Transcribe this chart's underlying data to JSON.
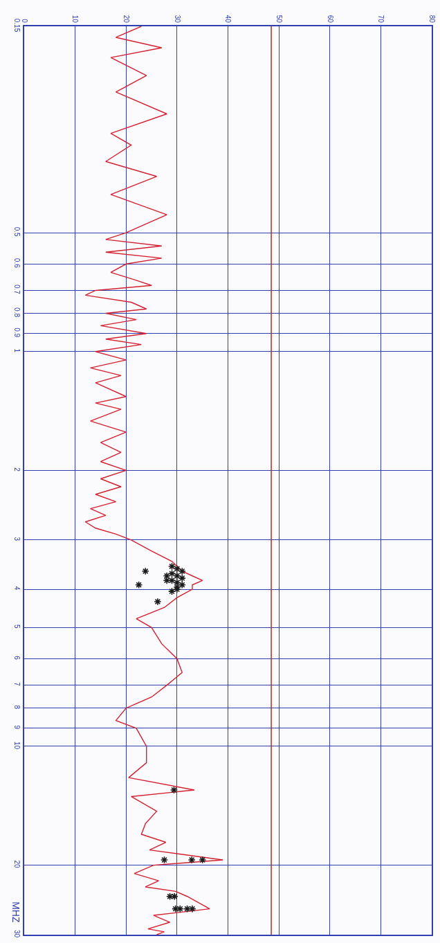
{
  "chart_data": {
    "type": "line",
    "orientation": "horizontal",
    "ylabel": "MHZ",
    "log": "y",
    "grid": true,
    "xlim": [
      0,
      80
    ],
    "xticks": [
      0,
      10,
      20,
      30,
      40,
      50,
      60,
      70,
      80
    ],
    "ylim": [
      30,
      0.15
    ],
    "yticks": [
      0.15,
      0.5,
      0.6,
      0.7,
      0.8,
      0.9,
      1,
      2,
      3,
      4,
      5,
      6,
      7,
      8,
      9,
      10,
      20,
      30
    ],
    "ref_lines": [
      {
        "axis": "x",
        "value": 48.5,
        "color": "#b03020"
      }
    ],
    "series": [
      {
        "color": "#d42030",
        "marker": "none",
        "x": [
          0.15,
          0.16,
          0.17,
          0.18,
          0.2,
          0.22,
          0.25,
          0.28,
          0.3,
          0.33,
          0.36,
          0.4,
          0.45,
          0.5,
          0.52,
          0.54,
          0.56,
          0.58,
          0.6,
          0.63,
          0.66,
          0.68,
          0.7,
          0.72,
          0.75,
          0.78,
          0.8,
          0.83,
          0.86,
          0.9,
          0.93,
          0.96,
          1.0,
          1.05,
          1.1,
          1.15,
          1.2,
          1.3,
          1.35,
          1.4,
          1.5,
          1.6,
          1.7,
          1.8,
          1.9,
          2.0,
          2.1,
          2.2,
          2.3,
          2.4,
          2.5,
          2.6,
          2.7,
          2.8,
          2.9,
          3.0,
          3.2,
          3.4,
          3.6,
          3.7,
          3.8,
          3.9,
          4.0,
          4.2,
          4.45,
          4.75,
          5.0,
          5.5,
          6.0,
          6.5,
          7.0,
          7.5,
          8.0,
          8.6,
          9.0,
          10.0,
          11.0,
          12.0,
          12.9,
          13.4,
          14.6,
          15.7,
          16.7,
          17.5,
          18.3,
          19.4,
          20.0,
          21.0,
          21.9,
          22.7,
          23.3,
          24.0,
          25.8,
          26.8,
          27.9,
          29.0,
          29.5,
          30.0
        ],
        "values": [
          23,
          18,
          27,
          17,
          24,
          18,
          28,
          17,
          21,
          16,
          26,
          17,
          28,
          20,
          16,
          27,
          16,
          27,
          20,
          17,
          22,
          25,
          14,
          12,
          21,
          24,
          16,
          22,
          15,
          24,
          16,
          23,
          14,
          20,
          13,
          19,
          14,
          20,
          14,
          19,
          13,
          20,
          15,
          19,
          15,
          20,
          15,
          19,
          14,
          18,
          13,
          16,
          12,
          14,
          18,
          21,
          25,
          29,
          31,
          33,
          35,
          33,
          33,
          30,
          27.5,
          22,
          25,
          27,
          30,
          31,
          28,
          25,
          20,
          18,
          22,
          24,
          24,
          20.5,
          33.4,
          21,
          26,
          23.8,
          23,
          27.8,
          24.6,
          39,
          25.4,
          21.6,
          26.4,
          23.8,
          29.7,
          32,
          36.4,
          25.4,
          28.6,
          24.3,
          27.5,
          26
        ]
      },
      {
        "type": "scatter",
        "color": "#1a1a1a",
        "marker": "cross",
        "x": [
          3.5,
          3.55,
          3.6,
          3.65,
          3.7,
          3.75,
          3.8,
          3.85,
          3.9,
          3.95,
          4.0,
          4.05,
          3.7,
          3.8,
          3.6,
          3.9,
          4.3,
          12.9,
          19.4,
          19.4,
          19.4,
          24.0,
          24.0,
          25.8,
          25.8,
          25.8,
          25.8
        ],
        "values": [
          29,
          30,
          31,
          29,
          30,
          31,
          29,
          30,
          31,
          30,
          30,
          29,
          28,
          28,
          23.8,
          22.5,
          26.2,
          29.4,
          27.5,
          32.9,
          35,
          28.6,
          29.5,
          29.7,
          30.6,
          32,
          33
        ]
      }
    ]
  }
}
